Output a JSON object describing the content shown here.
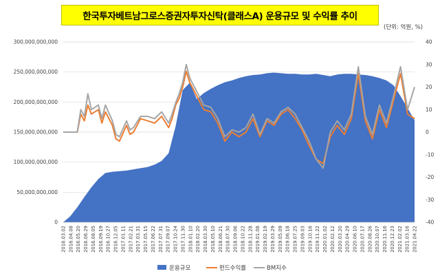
{
  "chart_data": {
    "type": "area+line",
    "title": "한국투자베트남그로스증권자투자신탁(클래스A) 운용규모 및 수익률 추이",
    "unit_note": "(단위: 억원, %)",
    "colors": {
      "aum": "#4472c4",
      "fund": "#ed7d31",
      "bm": "#a5a5a5"
    },
    "grid": true,
    "legend_position": "bottom",
    "left_axis": {
      "ylim": [
        0,
        300000000000
      ],
      "ticks": [
        "0",
        "50,000,000,000",
        "100,000,000,000",
        "150,000,000,000",
        "200,000,000,000",
        "250,000,000,000",
        "300,000,000,000"
      ]
    },
    "right_axis": {
      "ylim": [
        -40,
        40
      ],
      "ticks": [
        "-40",
        "-30",
        "-20",
        "-10",
        "0",
        "10",
        "20",
        "30",
        "40"
      ]
    },
    "x_tick_labels": [
      "2016.03.02",
      "2016.04.08",
      "2016.05.20",
      "2016.06.29",
      "2016.08.05",
      "2016.09.19",
      "2016.10.27",
      "2016.12.05",
      "2017.01.11",
      "2017.02.21",
      "2017.03.31",
      "2017.05.15",
      "2017.06.22",
      "2017.07.31",
      "2017.09.07",
      "2017.10.24",
      "2017.11.30",
      "2018.01.10",
      "2018.02.20",
      "2018.03.30",
      "2018.05.10",
      "2018.06.21",
      "2018.07.30",
      "2018.09.06",
      "2018.10.22",
      "2018.11.28",
      "2019.01.08",
      "2019.02.19",
      "2019.03.29",
      "2019.05.09",
      "2019.06.18",
      "2019.07.25",
      "2019.09.03",
      "2019.10.16",
      "2019.11.22",
      "2020.01.02",
      "2020.02.12",
      "2020.03.20",
      "2020.04.29",
      "2020.06.10",
      "2020.07.17",
      "2020.08.26",
      "2020.10.07",
      "2020.11.16",
      "2020.12.23",
      "2021.02.02",
      "2021.03.16",
      "2021.04.22"
    ],
    "series": [
      {
        "name": "운용규모",
        "type": "area",
        "axis": "left",
        "x": [
          0,
          0.02,
          0.04,
          0.06,
          0.08,
          0.1,
          0.12,
          0.14,
          0.16,
          0.18,
          0.2,
          0.22,
          0.24,
          0.26,
          0.28,
          0.3,
          0.32,
          0.34,
          0.36,
          0.38,
          0.4,
          0.42,
          0.44,
          0.46,
          0.48,
          0.5,
          0.52,
          0.54,
          0.56,
          0.58,
          0.6,
          0.62,
          0.64,
          0.66,
          0.68,
          0.7,
          0.72,
          0.74,
          0.76,
          0.78,
          0.8,
          0.82,
          0.84,
          0.86,
          0.88,
          0.9,
          0.92,
          0.94,
          0.96,
          0.98,
          1.0
        ],
        "values": [
          0,
          10000000000.0,
          25000000000.0,
          42000000000.0,
          58000000000.0,
          72000000000.0,
          82000000000.0,
          84000000000.0,
          85000000000.0,
          86000000000.0,
          88000000000.0,
          90000000000.0,
          92000000000.0,
          96000000000.0,
          102000000000.0,
          115000000000.0,
          160000000000.0,
          220000000000.0,
          232000000000.0,
          205000000000.0,
          215000000000.0,
          222000000000.0,
          228000000000.0,
          233000000000.0,
          236000000000.0,
          240000000000.0,
          243000000000.0,
          245000000000.0,
          246000000000.0,
          248000000000.0,
          249000000000.0,
          248000000000.0,
          247000000000.0,
          247000000000.0,
          246000000000.0,
          246000000000.0,
          247000000000.0,
          245000000000.0,
          243000000000.0,
          246000000000.0,
          247000000000.0,
          247000000000.0,
          246000000000.0,
          245000000000.0,
          243000000000.0,
          240000000000.0,
          236000000000.0,
          228000000000.0,
          210000000000.0,
          190000000000.0,
          170000000000.0
        ]
      },
      {
        "name": "펀드수익률",
        "type": "line",
        "axis": "right",
        "x": [
          0,
          0.04,
          0.05,
          0.06,
          0.07,
          0.08,
          0.1,
          0.11,
          0.12,
          0.14,
          0.15,
          0.16,
          0.18,
          0.19,
          0.2,
          0.22,
          0.24,
          0.26,
          0.28,
          0.3,
          0.31,
          0.32,
          0.33,
          0.34,
          0.35,
          0.36,
          0.38,
          0.4,
          0.42,
          0.44,
          0.46,
          0.48,
          0.5,
          0.52,
          0.54,
          0.56,
          0.58,
          0.6,
          0.62,
          0.64,
          0.66,
          0.68,
          0.7,
          0.72,
          0.74,
          0.76,
          0.78,
          0.8,
          0.82,
          0.84,
          0.86,
          0.88,
          0.9,
          0.92,
          0.94,
          0.96,
          0.98,
          1.0
        ],
        "values": [
          0,
          0,
          8,
          5,
          12,
          8,
          10,
          4,
          9,
          3,
          -3,
          -4,
          3,
          -1,
          0,
          6,
          5,
          4,
          7,
          2,
          6,
          12,
          15,
          20,
          27,
          22,
          16,
          10,
          9,
          4,
          -4,
          0,
          -2,
          0,
          6,
          -2,
          5,
          3,
          8,
          10,
          6,
          1,
          -6,
          -12,
          -14,
          -2,
          3,
          -1,
          6,
          26,
          5,
          -3,
          10,
          2,
          14,
          26,
          8,
          6
        ]
      },
      {
        "name": "BM지수",
        "type": "line",
        "axis": "right",
        "x": [
          0,
          0.04,
          0.05,
          0.06,
          0.07,
          0.08,
          0.1,
          0.11,
          0.12,
          0.14,
          0.15,
          0.16,
          0.18,
          0.19,
          0.2,
          0.22,
          0.24,
          0.26,
          0.28,
          0.3,
          0.31,
          0.32,
          0.33,
          0.34,
          0.35,
          0.36,
          0.38,
          0.4,
          0.42,
          0.44,
          0.46,
          0.48,
          0.5,
          0.52,
          0.54,
          0.56,
          0.58,
          0.6,
          0.62,
          0.64,
          0.66,
          0.68,
          0.7,
          0.72,
          0.74,
          0.76,
          0.78,
          0.8,
          0.82,
          0.84,
          0.86,
          0.88,
          0.9,
          0.92,
          0.94,
          0.96,
          0.98,
          1.0
        ],
        "values": [
          0,
          0,
          10,
          7,
          17,
          10,
          12,
          6,
          12,
          5,
          -1,
          -2,
          5,
          1,
          2,
          7,
          7,
          6,
          9,
          4,
          8,
          13,
          17,
          22,
          30,
          24,
          18,
          12,
          11,
          6,
          -2,
          1,
          0,
          2,
          8,
          -1,
          6,
          4,
          9,
          11,
          8,
          2,
          -4,
          -12,
          -16,
          0,
          5,
          1,
          8,
          29,
          7,
          -1,
          12,
          4,
          16,
          29,
          10,
          20
        ]
      }
    ]
  }
}
